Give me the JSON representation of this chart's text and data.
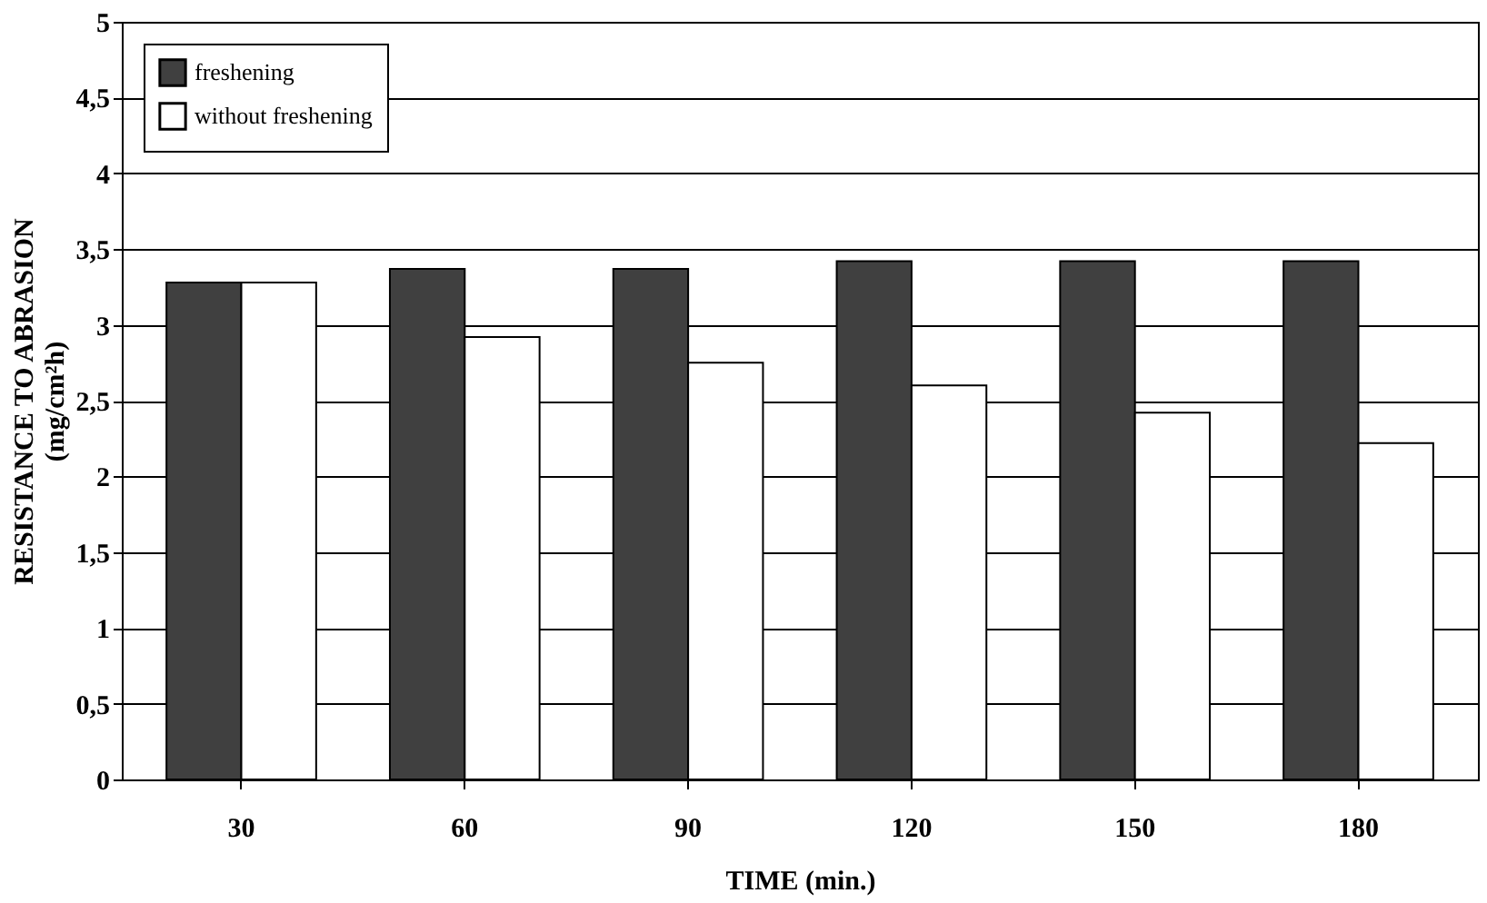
{
  "chart_data": {
    "type": "bar",
    "xlabel": "TIME (min.)",
    "ylabel": "RESISTANCE TO ABRASION\n(mg/cm²h)",
    "categories": [
      "30",
      "60",
      "90",
      "120",
      "150",
      "180"
    ],
    "series": [
      {
        "name": "freshening",
        "color": "#404040",
        "values": [
          3.28,
          3.37,
          3.37,
          3.42,
          3.42,
          3.42
        ]
      },
      {
        "name": "without freshening",
        "color": "#ffffff",
        "values": [
          3.28,
          2.92,
          2.75,
          2.6,
          2.42,
          2.22
        ]
      }
    ],
    "ylim": [
      0,
      5
    ],
    "yticks": [
      0,
      {
        "value": 0.5,
        "label": "0,5"
      },
      1,
      {
        "value": 1.5,
        "label": "1,5"
      },
      2,
      {
        "value": 2.5,
        "label": "2,5"
      },
      3,
      {
        "value": 3.5,
        "label": "3,5"
      },
      4,
      {
        "value": 4.5,
        "label": "4,5"
      },
      5
    ],
    "grid": "y",
    "legend": "top left"
  }
}
